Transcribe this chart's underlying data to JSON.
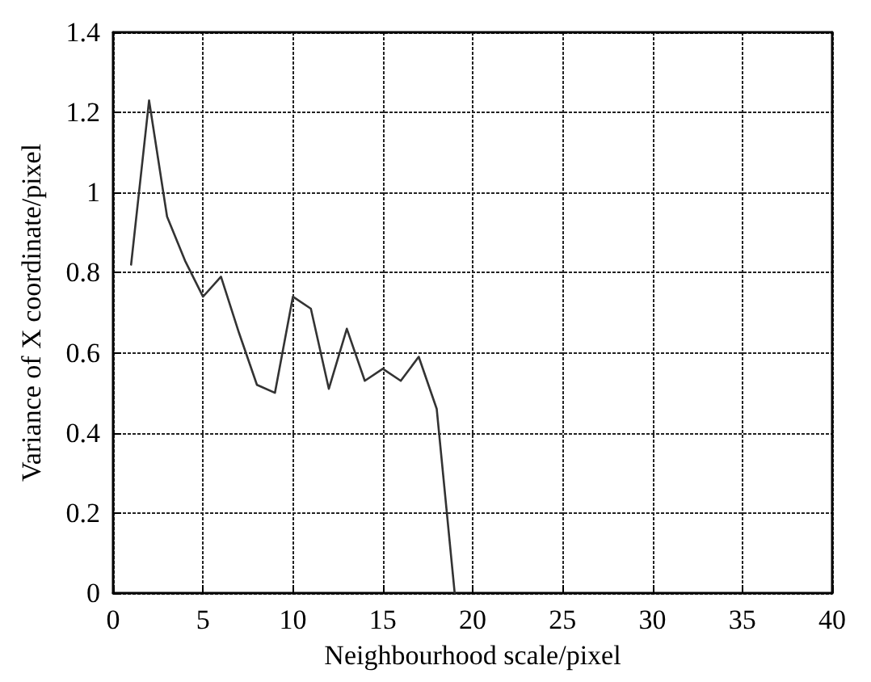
{
  "chart_data": {
    "type": "line",
    "xlabel": "Neighbourhood scale/pixel",
    "ylabel": "Variance of X coordinate/pixel",
    "x": [
      1,
      2,
      3,
      4,
      5,
      6,
      7,
      8,
      9,
      10,
      11,
      12,
      13,
      14,
      15,
      16,
      17,
      18,
      19
    ],
    "series": [
      {
        "color": "#333333",
        "values": [
          0.82,
          1.23,
          0.94,
          0.83,
          0.74,
          0.79,
          0.65,
          0.52,
          0.5,
          0.74,
          0.71,
          0.51,
          0.66,
          0.53,
          0.56,
          0.53,
          0.59,
          0.46,
          0
        ]
      }
    ],
    "xlim": [
      0,
      40
    ],
    "xticks": [
      0,
      5,
      10,
      15,
      20,
      25,
      30,
      35,
      40
    ],
    "ylim": [
      0,
      1.4
    ],
    "yticks": [
      0,
      0.2,
      0.4,
      0.6,
      0.8,
      1,
      1.2,
      1.4
    ],
    "grid": true,
    "marker": "none",
    "line_style": "solid"
  }
}
